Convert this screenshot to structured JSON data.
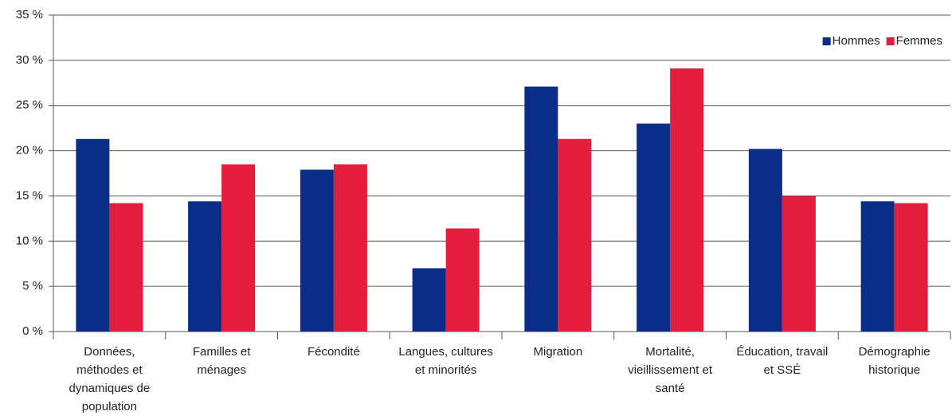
{
  "chart_data": {
    "type": "bar",
    "categories": [
      "Données, méthodes et dynamiques de population",
      "Familles et ménages",
      "Fécondité",
      "Langues, cultures et minorités",
      "Migration",
      "Mortalité, vieillissement et santé",
      "Éducation, travail et SSÉ",
      "Démographie historique"
    ],
    "series": [
      {
        "name": "Hommes",
        "color": "#0a2d87",
        "values": [
          21.3,
          14.4,
          17.9,
          7.0,
          27.1,
          23.0,
          20.2,
          14.4
        ]
      },
      {
        "name": "Femmes",
        "color": "#e21e3c",
        "values": [
          14.2,
          18.5,
          18.5,
          11.4,
          21.3,
          29.1,
          15.0,
          14.2
        ]
      }
    ],
    "ylim": [
      0,
      35
    ],
    "yticks": [
      {
        "value": 0,
        "label": "0 %"
      },
      {
        "value": 5,
        "label": "5 %"
      },
      {
        "value": 10,
        "label": "10 %"
      },
      {
        "value": 15,
        "label": "15 %"
      },
      {
        "value": 20,
        "label": "20 %"
      },
      {
        "value": 25,
        "label": "25 %"
      },
      {
        "value": 30,
        "label": "30 %"
      },
      {
        "value": 35,
        "label": "35 %"
      }
    ],
    "grid": true,
    "legend": "upper right"
  }
}
